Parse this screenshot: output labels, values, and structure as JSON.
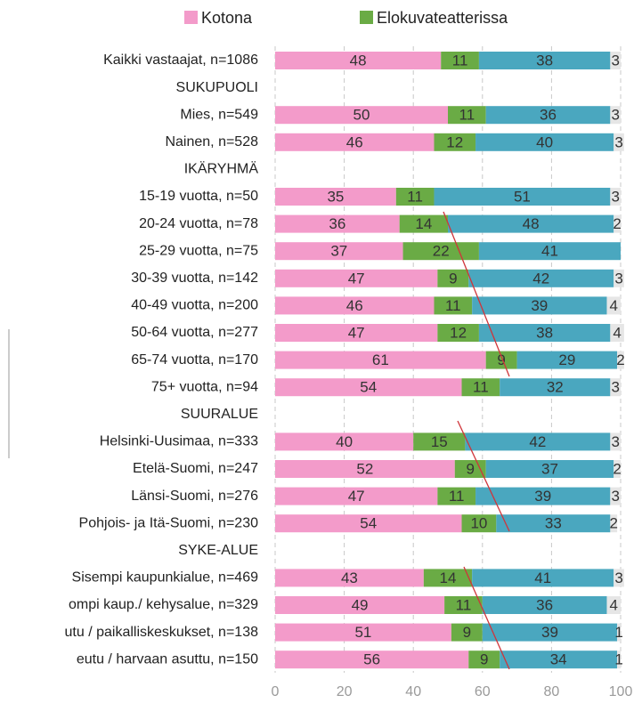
{
  "chart_data": {
    "type": "stacked-barh",
    "categories": [
      "Kaikki vastaajat, n=1086",
      "SUKUPUOLI",
      "Mies, n=549",
      "Nainen, n=528",
      "IKÄRYHMÄ",
      "15-19 vuotta, n=50",
      "20-24 vuotta, n=78",
      "25-29 vuotta, n=75",
      "30-39 vuotta, n=142",
      "40-49 vuotta, n=200",
      "50-64 vuotta, n=277",
      "65-74 vuotta, n=170",
      "75+ vuotta, n=94",
      "SUURALUE",
      "Helsinki-Uusimaa, n=333",
      "Etelä-Suomi, n=247",
      "Länsi-Suomi, n=276",
      "Pohjois- ja Itä-Suomi, n=230",
      "SYKE-ALUE",
      "Sisempi kaupunkialue, n=469",
      "ompi kaup./ kehysalue, n=329",
      "utu / paikalliskeskukset, n=138",
      "eutu / harvaan asuttu, n=150"
    ],
    "series": [
      {
        "name": "Kotona",
        "color": "#f39bca",
        "values": [
          48,
          null,
          50,
          46,
          null,
          35,
          36,
          37,
          47,
          46,
          47,
          61,
          54,
          null,
          40,
          52,
          47,
          54,
          null,
          43,
          49,
          51,
          56
        ]
      },
      {
        "name": "Elokuvateatterissa",
        "color": "#6aab45",
        "values": [
          11,
          null,
          11,
          12,
          null,
          11,
          14,
          22,
          9,
          11,
          12,
          9,
          11,
          null,
          15,
          9,
          11,
          10,
          null,
          14,
          11,
          9,
          9
        ]
      },
      {
        "color": "#4aa7bf",
        "values": [
          38,
          null,
          36,
          40,
          null,
          51,
          48,
          41,
          42,
          39,
          38,
          29,
          32,
          null,
          42,
          37,
          39,
          33,
          null,
          41,
          36,
          39,
          34
        ]
      },
      {
        "color": "#e6e6e6",
        "values": [
          3,
          null,
          3,
          3,
          null,
          3,
          2,
          null,
          3,
          4,
          4,
          2,
          3,
          null,
          3,
          2,
          3,
          2,
          null,
          3,
          4,
          1,
          1
        ]
      }
    ],
    "xlim": [
      0,
      100
    ],
    "xticks": [
      0,
      20,
      40,
      60,
      80,
      100
    ],
    "grid": true
  }
}
